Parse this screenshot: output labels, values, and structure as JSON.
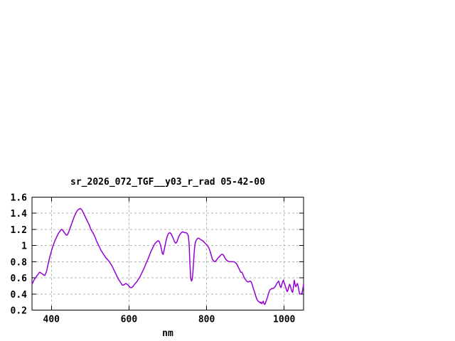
{
  "window": {
    "background": "#ffffff"
  },
  "chart_data": {
    "type": "line",
    "title": "sr_2026_072_TGF__y03_r_rad 05-42-00",
    "xlabel": "nm",
    "ylabel": "",
    "xlim": [
      350,
      1050
    ],
    "ylim": [
      0.2,
      1.6
    ],
    "xticks": [
      400,
      600,
      800,
      1000
    ],
    "xticklabels": [
      "400",
      "600",
      "800",
      "1000"
    ],
    "yticks": [
      0.2,
      0.4,
      0.6,
      0.8,
      1.0,
      1.2,
      1.4,
      1.6
    ],
    "yticklabels": [
      "0.2",
      "0.4",
      "0.6",
      "0.8",
      "1",
      "1.2",
      "1.4",
      "1.6"
    ],
    "grid": true,
    "legend": "none",
    "colors": {
      "line": "#9400d3",
      "grid": "#b3b3b3",
      "axis": "#000000",
      "text": "#000000"
    },
    "series": [
      {
        "name": "sr_2026_072_TGF__y03_r_rad",
        "x": [
          350,
          353,
          356,
          359,
          362,
          365,
          368,
          370,
          373,
          376,
          379,
          381,
          383,
          385,
          388,
          391,
          394,
          397,
          400,
          403,
          406,
          409,
          412,
          415,
          418,
          421,
          424,
          426,
          429,
          432,
          435,
          438,
          441,
          444,
          447,
          450,
          453,
          456,
          459,
          462,
          465,
          468,
          471,
          474,
          477,
          480,
          483,
          486,
          489,
          492,
          495,
          498,
          501,
          504,
          507,
          510,
          513,
          516,
          520,
          524,
          528,
          532,
          536,
          540,
          544,
          548,
          552,
          556,
          560,
          564,
          568,
          572,
          576,
          580,
          583,
          586,
          589,
          592,
          595,
          598,
          601,
          604,
          607,
          610,
          613,
          616,
          620,
          624,
          628,
          632,
          636,
          640,
          644,
          648,
          652,
          656,
          660,
          664,
          668,
          672,
          675,
          678,
          681,
          684,
          686,
          688,
          690,
          693,
          696,
          699,
          702,
          705,
          708,
          711,
          714,
          717,
          720,
          723,
          726,
          729,
          732,
          735,
          739,
          743,
          747,
          750,
          753,
          755,
          757,
          759,
          761,
          763,
          765,
          767,
          769,
          771,
          774,
          777,
          780,
          783,
          786,
          790,
          794,
          798,
          802,
          806,
          809,
          812,
          815,
          818,
          821,
          824,
          827,
          830,
          833,
          836,
          839,
          842,
          845,
          848,
          851,
          854,
          858,
          862,
          866,
          870,
          874,
          878,
          882,
          885,
          888,
          891,
          894,
          897,
          900,
          903,
          906,
          909,
          912,
          915,
          918,
          921,
          924,
          927,
          930,
          933,
          936,
          938,
          940,
          942,
          944,
          946,
          948,
          950,
          952,
          954,
          957,
          960,
          963,
          966,
          969,
          972,
          975,
          978,
          981,
          984,
          986,
          988,
          990,
          992,
          994,
          996,
          998,
          1000,
          1002,
          1004,
          1006,
          1008,
          1010,
          1012,
          1014,
          1016,
          1018,
          1020,
          1022,
          1024,
          1026,
          1028,
          1030,
          1032,
          1034,
          1036,
          1038,
          1040,
          1043,
          1046,
          1048,
          1050
        ],
        "y": [
          0.52,
          0.55,
          0.58,
          0.6,
          0.62,
          0.64,
          0.66,
          0.67,
          0.66,
          0.65,
          0.64,
          0.63,
          0.63,
          0.65,
          0.69,
          0.76,
          0.82,
          0.88,
          0.93,
          0.98,
          1.02,
          1.06,
          1.09,
          1.12,
          1.15,
          1.17,
          1.19,
          1.2,
          1.19,
          1.17,
          1.15,
          1.13,
          1.13,
          1.16,
          1.2,
          1.24,
          1.28,
          1.32,
          1.36,
          1.39,
          1.42,
          1.44,
          1.45,
          1.46,
          1.45,
          1.43,
          1.4,
          1.37,
          1.34,
          1.31,
          1.28,
          1.25,
          1.21,
          1.18,
          1.16,
          1.13,
          1.1,
          1.06,
          1.02,
          0.98,
          0.94,
          0.91,
          0.88,
          0.85,
          0.83,
          0.81,
          0.78,
          0.75,
          0.71,
          0.67,
          0.63,
          0.59,
          0.56,
          0.53,
          0.51,
          0.51,
          0.52,
          0.53,
          0.52,
          0.51,
          0.49,
          0.48,
          0.48,
          0.49,
          0.51,
          0.53,
          0.55,
          0.58,
          0.61,
          0.65,
          0.69,
          0.73,
          0.78,
          0.82,
          0.87,
          0.92,
          0.96,
          1.0,
          1.03,
          1.05,
          1.06,
          1.05,
          1.01,
          0.95,
          0.9,
          0.89,
          0.93,
          1.0,
          1.07,
          1.12,
          1.15,
          1.16,
          1.15,
          1.12,
          1.09,
          1.05,
          1.03,
          1.04,
          1.08,
          1.12,
          1.14,
          1.16,
          1.17,
          1.16,
          1.16,
          1.15,
          1.12,
          1.02,
          0.78,
          0.6,
          0.56,
          0.58,
          0.68,
          0.84,
          0.97,
          1.04,
          1.07,
          1.09,
          1.09,
          1.08,
          1.07,
          1.06,
          1.04,
          1.02,
          1.0,
          0.97,
          0.93,
          0.88,
          0.83,
          0.81,
          0.8,
          0.81,
          0.83,
          0.85,
          0.86,
          0.88,
          0.89,
          0.89,
          0.87,
          0.84,
          0.82,
          0.81,
          0.8,
          0.8,
          0.8,
          0.8,
          0.79,
          0.77,
          0.73,
          0.7,
          0.67,
          0.67,
          0.64,
          0.6,
          0.58,
          0.56,
          0.55,
          0.55,
          0.56,
          0.55,
          0.51,
          0.46,
          0.42,
          0.37,
          0.33,
          0.31,
          0.3,
          0.29,
          0.3,
          0.28,
          0.29,
          0.31,
          0.28,
          0.27,
          0.29,
          0.32,
          0.36,
          0.41,
          0.45,
          0.46,
          0.47,
          0.47,
          0.48,
          0.5,
          0.53,
          0.55,
          0.56,
          0.52,
          0.49,
          0.48,
          0.52,
          0.55,
          0.57,
          0.54,
          0.51,
          0.48,
          0.45,
          0.43,
          0.45,
          0.49,
          0.52,
          0.5,
          0.46,
          0.43,
          0.42,
          0.49,
          0.57,
          0.52,
          0.49,
          0.51,
          0.53,
          0.5,
          0.44,
          0.4,
          0.4,
          0.41,
          0.46,
          0.52
        ]
      }
    ]
  }
}
